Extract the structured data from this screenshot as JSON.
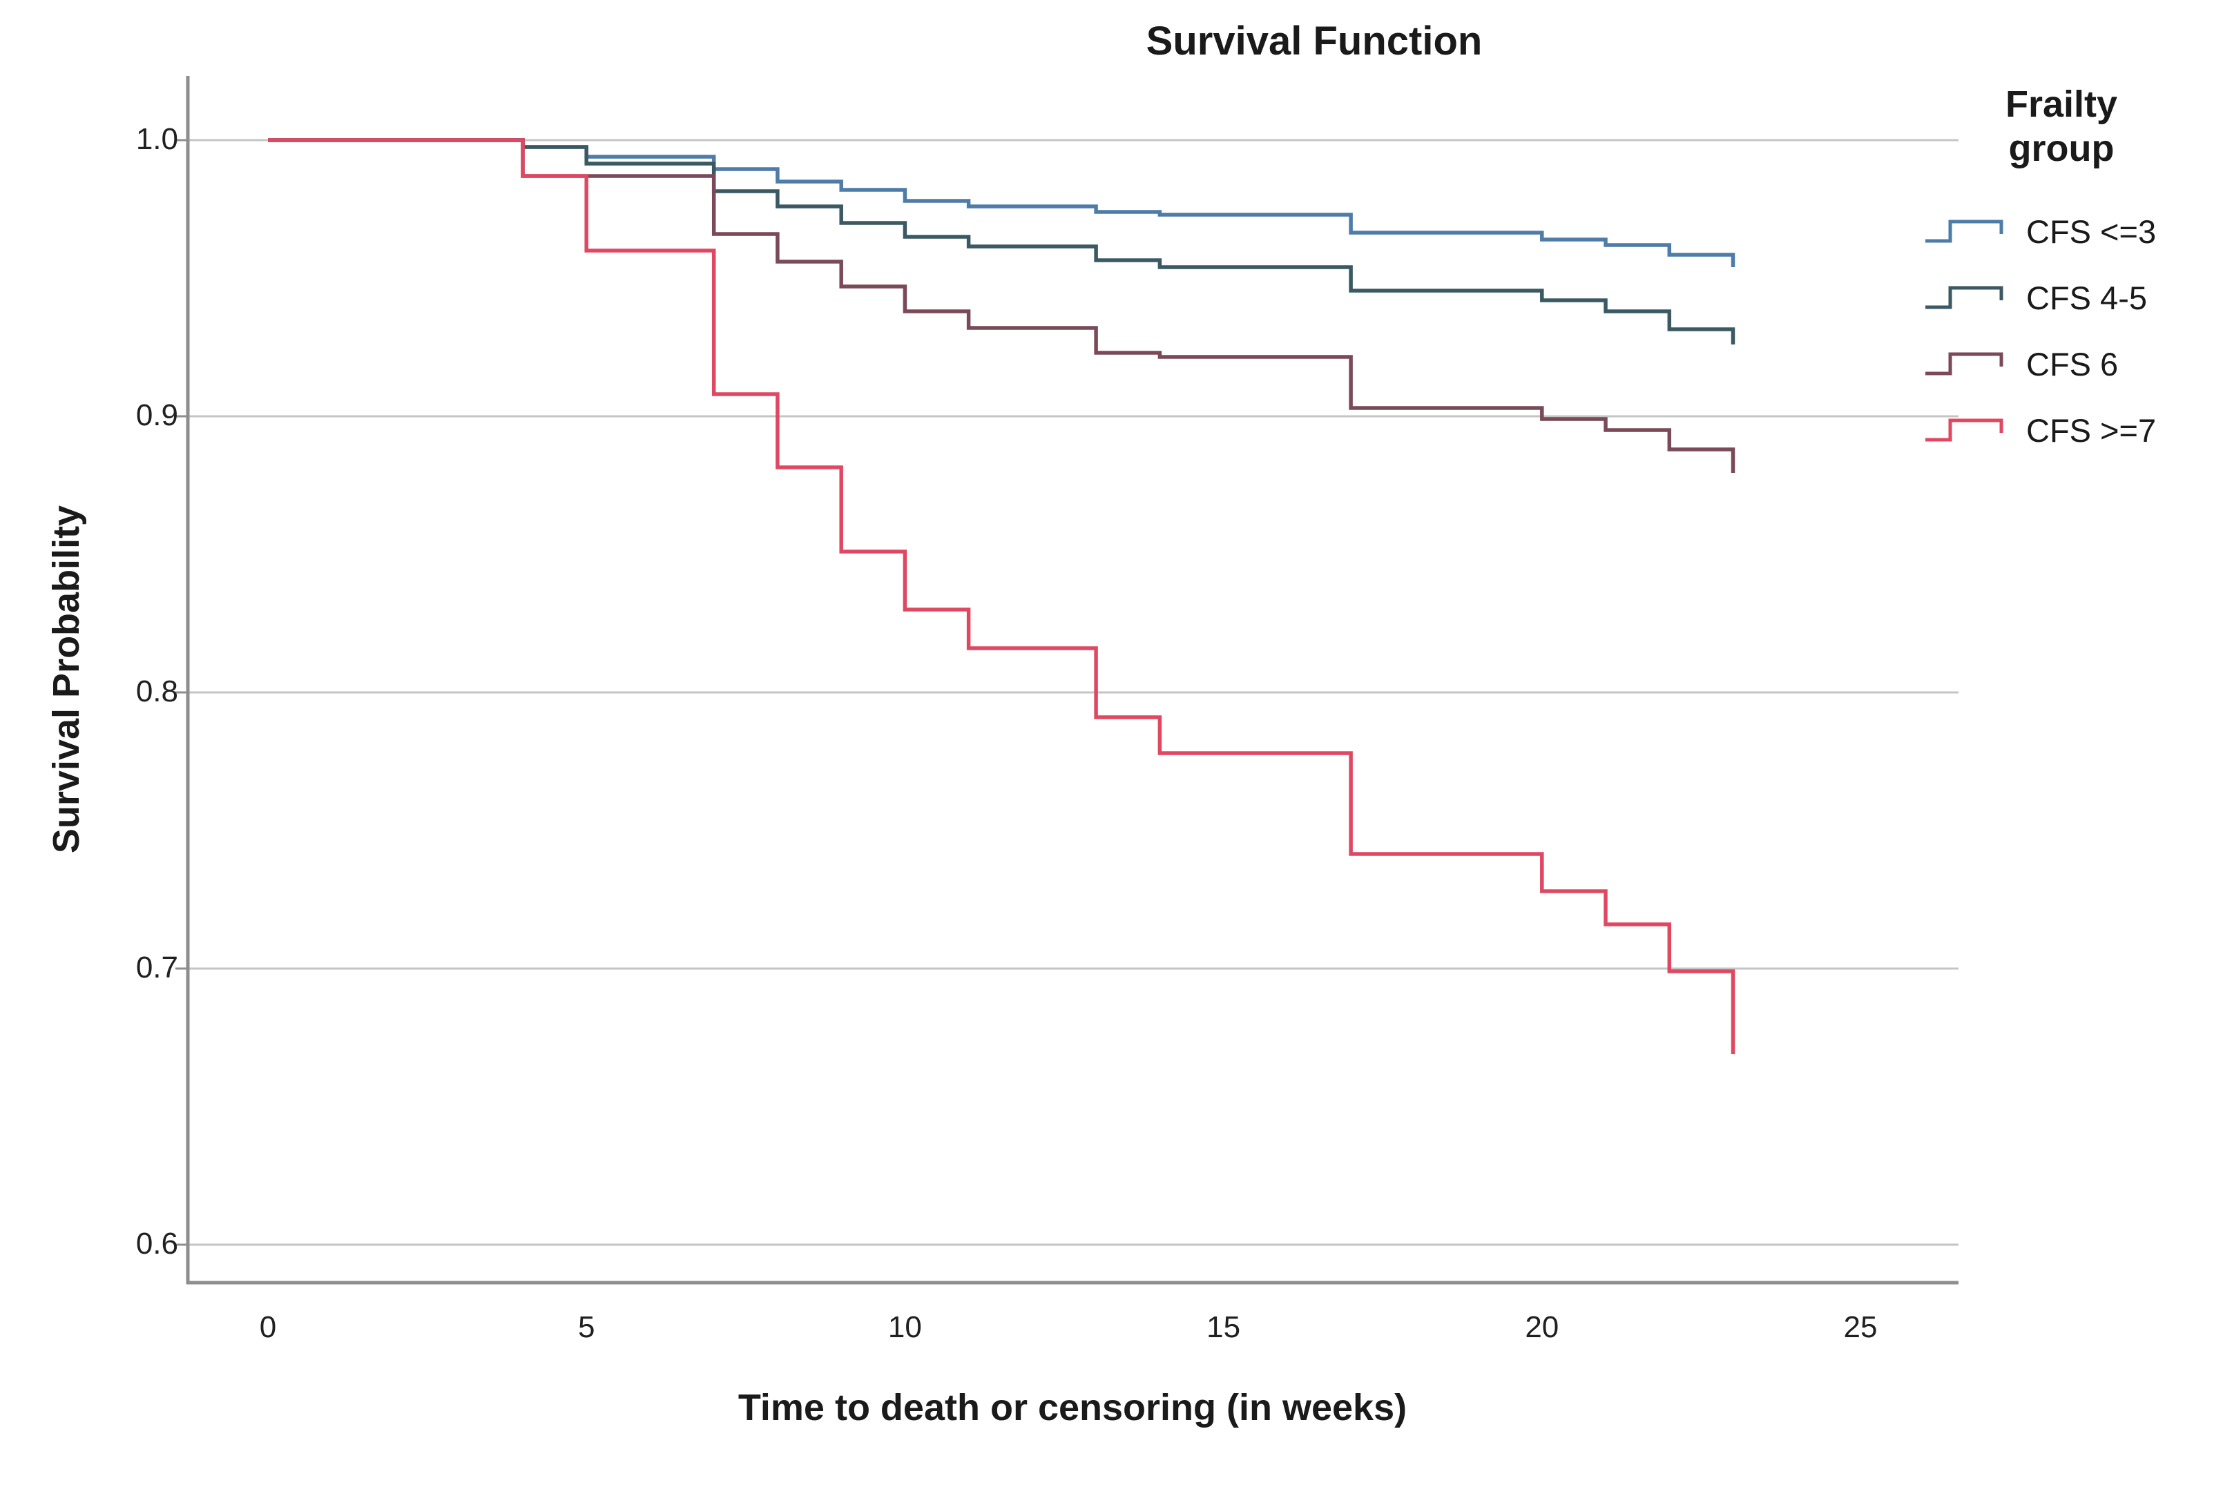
{
  "title": "Survival Function",
  "y_axis": {
    "label": "Survival Probability",
    "tick_labels": [
      "1.0",
      "0.9",
      "0.8",
      "0.7",
      "0.6"
    ],
    "tick_values": [
      1.0,
      0.9,
      0.8,
      0.7,
      0.6
    ]
  },
  "x_axis": {
    "label": "Time to death or censoring (in weeks)",
    "tick_labels": [
      "0",
      "5",
      "10",
      "15",
      "20",
      "25"
    ],
    "tick_values": [
      0,
      5,
      10,
      15,
      20,
      25
    ]
  },
  "legend": {
    "title": "Frailty group",
    "items": [
      {
        "label": "CFS <=3",
        "color": "#4E7CA8"
      },
      {
        "label": "CFS 4-5",
        "color": "#3A5963"
      },
      {
        "label": "CFS 6",
        "color": "#7A4A58"
      },
      {
        "label": "CFS >=7",
        "color": "#E04862"
      }
    ]
  },
  "colors": {
    "gridline": "#C4C4C4",
    "axis": "#8E8E8E",
    "text": "#1A1A1A"
  },
  "chart_data": {
    "type": "line",
    "subtype": "kaplan-meier-step",
    "title": "Survival Function",
    "xlabel": "Time to death or censoring (in weeks)",
    "ylabel": "Survival Probability",
    "xlim": [
      0,
      26.5
    ],
    "ylim": [
      0.585,
      1.02
    ],
    "grid": "horizontal",
    "legend_position": "right",
    "series": [
      {
        "name": "CFS <=3",
        "color": "#4E7CA8",
        "points": [
          [
            0,
            1.0
          ],
          [
            4,
            0.9975
          ],
          [
            5,
            0.994
          ],
          [
            7,
            0.9895
          ],
          [
            8,
            0.985
          ],
          [
            9,
            0.982
          ],
          [
            10,
            0.978
          ],
          [
            11,
            0.976
          ],
          [
            13,
            0.974
          ],
          [
            14,
            0.973
          ],
          [
            17,
            0.9665
          ],
          [
            20,
            0.964
          ],
          [
            21,
            0.962
          ],
          [
            22,
            0.9585
          ],
          [
            23,
            0.954
          ]
        ]
      },
      {
        "name": "CFS 4-5",
        "color": "#3A5963",
        "points": [
          [
            0,
            1.0
          ],
          [
            4,
            0.9975
          ],
          [
            5,
            0.9915
          ],
          [
            7,
            0.9815
          ],
          [
            8,
            0.976
          ],
          [
            9,
            0.97
          ],
          [
            10,
            0.965
          ],
          [
            11,
            0.9615
          ],
          [
            13,
            0.9565
          ],
          [
            14,
            0.954
          ],
          [
            17,
            0.9455
          ],
          [
            20,
            0.942
          ],
          [
            21,
            0.938
          ],
          [
            22,
            0.9315
          ],
          [
            23,
            0.926
          ]
        ]
      },
      {
        "name": "CFS 6",
        "color": "#7A4A58",
        "points": [
          [
            0,
            1.0
          ],
          [
            4,
            0.987
          ],
          [
            7,
            0.966
          ],
          [
            8,
            0.956
          ],
          [
            9,
            0.947
          ],
          [
            10,
            0.938
          ],
          [
            11,
            0.932
          ],
          [
            13,
            0.923
          ],
          [
            14,
            0.9215
          ],
          [
            17,
            0.903
          ],
          [
            20,
            0.899
          ],
          [
            21,
            0.895
          ],
          [
            22,
            0.888
          ],
          [
            23,
            0.8795
          ]
        ]
      },
      {
        "name": "CFS >=7",
        "color": "#E04862",
        "points": [
          [
            0,
            1.0
          ],
          [
            4,
            0.987
          ],
          [
            5,
            0.96
          ],
          [
            7,
            0.908
          ],
          [
            8,
            0.8815
          ],
          [
            9,
            0.851
          ],
          [
            10,
            0.83
          ],
          [
            11,
            0.816
          ],
          [
            13,
            0.791
          ],
          [
            14,
            0.778
          ],
          [
            17,
            0.7415
          ],
          [
            20,
            0.728
          ],
          [
            21,
            0.716
          ],
          [
            22,
            0.699
          ],
          [
            23,
            0.669
          ]
        ]
      }
    ]
  }
}
